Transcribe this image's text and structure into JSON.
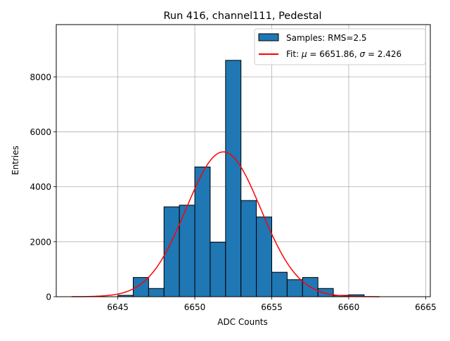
{
  "chart_data": {
    "type": "bar",
    "title": "Run 416, channel111, Pedestal",
    "xlabel": "ADC Counts",
    "ylabel": "Entries",
    "xlim": [
      6641,
      6665.3
    ],
    "ylim": [
      0,
      9900
    ],
    "xticks": [
      6645,
      6650,
      6655,
      6660,
      6665
    ],
    "yticks": [
      0,
      2000,
      4000,
      6000,
      8000
    ],
    "grid": true,
    "legend_position": "upper right",
    "histogram": {
      "name": "Samples: RMS=2.5",
      "color": "#1f77b4",
      "edgecolor": "#000000",
      "bin_width": 1,
      "bins": [
        {
          "x": 6645,
          "value": 50
        },
        {
          "x": 6646,
          "value": 700
        },
        {
          "x": 6647,
          "value": 300
        },
        {
          "x": 6648,
          "value": 3270
        },
        {
          "x": 6649,
          "value": 3330
        },
        {
          "x": 6650,
          "value": 4720
        },
        {
          "x": 6651,
          "value": 1980
        },
        {
          "x": 6652,
          "value": 8600
        },
        {
          "x": 6653,
          "value": 3500
        },
        {
          "x": 6654,
          "value": 2900
        },
        {
          "x": 6655,
          "value": 890
        },
        {
          "x": 6656,
          "value": 620
        },
        {
          "x": 6657,
          "value": 700
        },
        {
          "x": 6658,
          "value": 300
        },
        {
          "x": 6659,
          "value": 50
        },
        {
          "x": 6660,
          "value": 70
        }
      ]
    },
    "fit": {
      "name_prefix": "Fit: ",
      "name_mu": "μ",
      "name_mid": " = 6651.86, ",
      "name_sigma": "σ",
      "name_suffix": " = 2.426",
      "color": "#ff0000",
      "mu": 6651.86,
      "sigma": 2.426,
      "amplitude": 5270,
      "x_range": [
        6642,
        6662
      ]
    }
  }
}
